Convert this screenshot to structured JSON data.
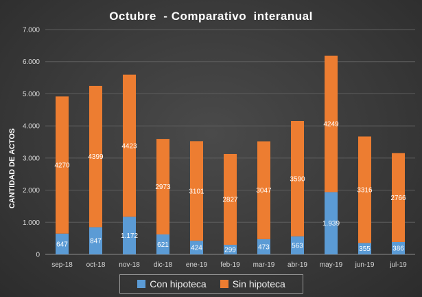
{
  "chart_data": {
    "type": "bar",
    "stacked": true,
    "title": "Octubre  - Comparativo  interanual",
    "xlabel": "",
    "ylabel": "CANTIDAD DE ACTOS",
    "ylim": [
      0,
      7000
    ],
    "yticks": [
      "0",
      "1.000",
      "2.000",
      "3.000",
      "4.000",
      "5.000",
      "6.000",
      "7.000"
    ],
    "ytick_values": [
      0,
      1000,
      2000,
      3000,
      4000,
      5000,
      6000,
      7000
    ],
    "grid": true,
    "legend_position": "bottom",
    "categories": [
      "sep-18",
      "oct-18",
      "nov-18",
      "dic-18",
      "ene-19",
      "feb-19",
      "mar-19",
      "abr-19",
      "may-19",
      "jun-19",
      "jul-19"
    ],
    "series": [
      {
        "name": "Con  hipoteca",
        "color": "#5b9bd5",
        "label_color": "#ffffff",
        "values": [
          647,
          847,
          1172,
          621,
          424,
          299,
          473,
          563,
          1939,
          355,
          386
        ],
        "labels": [
          "647",
          "847",
          "1.172",
          "621",
          "424",
          "299",
          "473",
          "563",
          "1.939",
          "355",
          "386"
        ]
      },
      {
        "name": "Sin hipoteca",
        "color": "#ed7d31",
        "label_color": "#ffffff",
        "values": [
          4270,
          4399,
          4423,
          2973,
          3101,
          2827,
          3047,
          3590,
          4249,
          3316,
          2766
        ],
        "labels": [
          "4270",
          "4399",
          "4423",
          "2973",
          "3101",
          "2827",
          "3047",
          "3590",
          "4249",
          "3316",
          "2766"
        ]
      }
    ]
  }
}
